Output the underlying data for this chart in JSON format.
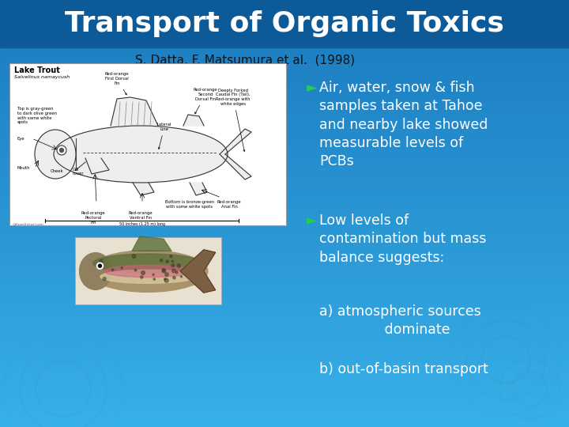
{
  "title": "Transport of Organic Toxics",
  "subtitle": "S. Datta, F. Matsumura et al.  (1998)",
  "bg_color": "#1e8ec4",
  "title_bar_color": "#1565a5",
  "title_color": "#ffffff",
  "subtitle_color": "#111111",
  "bullet_color": "#22cc55",
  "text_color": "#ffffff",
  "bullet1": "Air, water, snow & fish\nsamples taken at Tahoe\nand nearby lake showed\nmeasurable levels of\nPCBs",
  "bullet2": "Low levels of\ncontamination but mass\nbalance suggests:",
  "sub_a": "a) atmospheric sources\n               dominate",
  "sub_b": "b) out-of-basin transport",
  "title_fontsize": 26,
  "subtitle_fontsize": 11,
  "body_fontsize": 12.5
}
